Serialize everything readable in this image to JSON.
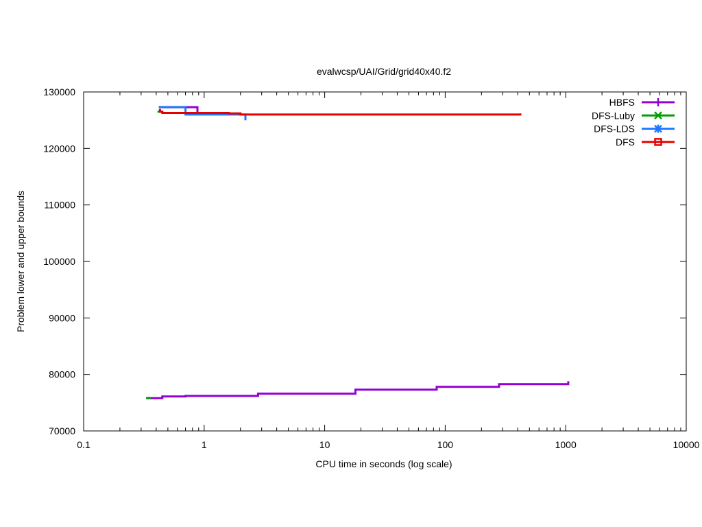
{
  "chart_data": {
    "type": "line",
    "title": "evalwcsp/UAI/Grid/grid40x40.f2",
    "xlabel": "CPU time in seconds (log scale)",
    "ylabel": "Problem lower and upper bounds",
    "x_scale": "log",
    "xlim": [
      0.1,
      10000
    ],
    "ylim": [
      70000,
      130000
    ],
    "x_ticks": [
      0.1,
      1,
      10,
      100,
      1000,
      10000
    ],
    "x_tick_labels": [
      "0.1",
      "1",
      "10",
      "100",
      "1000",
      "10000"
    ],
    "y_ticks": [
      70000,
      80000,
      90000,
      100000,
      110000,
      120000,
      130000
    ],
    "y_tick_labels": [
      "70000",
      "80000",
      "90000",
      "100000",
      "110000",
      "120000",
      "130000"
    ],
    "grid": false,
    "legend_position": "top-right",
    "series": [
      {
        "name": "HBFS",
        "color": "#9400d3",
        "marker": "plus",
        "lines": [
          {
            "kind": "lower",
            "x": [
              0.33,
              0.45,
              0.7,
              2.8,
              18,
              85,
              280,
              1050,
              1050
            ],
            "y": [
              75800,
              76100,
              76200,
              76600,
              77300,
              77800,
              78300,
              78300,
              78800
            ]
          },
          {
            "kind": "upper",
            "x": [
              0.42,
              0.88,
              0.88
            ],
            "y": [
              127300,
              127300,
              126100
            ]
          }
        ]
      },
      {
        "name": "DFS-Luby",
        "color": "#009e00",
        "marker": "cross",
        "lines": [
          {
            "kind": "lower",
            "x": [
              0.33,
              0.36
            ],
            "y": [
              75800,
              75800
            ]
          },
          {
            "kind": "upper",
            "x": [
              0.41,
              0.44
            ],
            "y": [
              126500,
              126500
            ]
          }
        ]
      },
      {
        "name": "DFS-LDS",
        "color": "#1e78ff",
        "marker": "star",
        "lines": [
          {
            "kind": "upper",
            "x": [
              0.42,
              0.7,
              0.7,
              1.9,
              2.2,
              2.2
            ],
            "y": [
              127300,
              127300,
              126000,
              126000,
              126000,
              125000
            ]
          }
        ]
      },
      {
        "name": "DFS",
        "color": "#e60000",
        "marker": "square",
        "lines": [
          {
            "kind": "upper",
            "x": [
              0.43,
              0.43,
              0.45,
              1.2,
              1.6,
              2.0,
              420,
              420
            ],
            "y": [
              127000,
              126500,
              126300,
              126300,
              126200,
              126000,
              126000,
              126200
            ]
          }
        ]
      }
    ]
  }
}
